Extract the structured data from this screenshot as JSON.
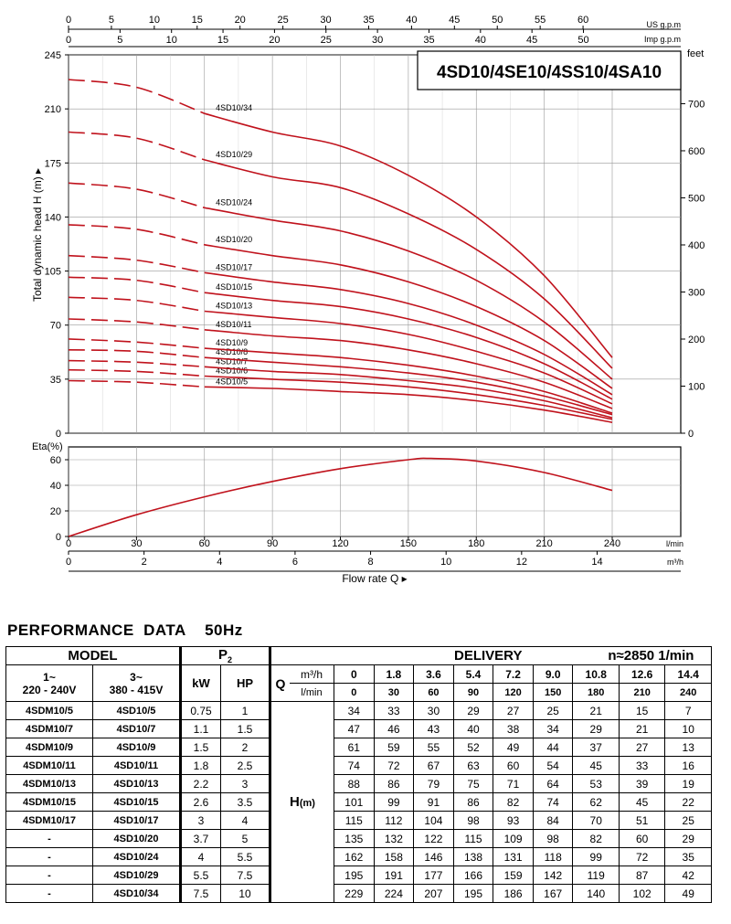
{
  "chart_title": "4SD10/4SE10/4SS10/4SA10",
  "colors": {
    "curve": "#c0121c",
    "axis": "#000000"
  },
  "axes": {
    "us_gpm_label": "US g.p.m",
    "imp_gpm_label": "Imp g.p.m",
    "feet_label": "feet",
    "head_label": "Total dynamic head H (m)",
    "eta_label": "Eta(%)",
    "lmin_unit": "l/min",
    "m3h_unit": "m³/h",
    "flow_label": "Flow rate  Q"
  },
  "chart_data": [
    {
      "type": "line",
      "title": "4SD10/4SE10/4SS10/4SA10",
      "xlabel": "Flow rate Q (l/min)",
      "ylabel": "Total dynamic head H (m)",
      "xlim": [
        0,
        240
      ],
      "ylim": [
        0,
        245
      ],
      "x_ticks_lmin": [
        0,
        30,
        60,
        90,
        120,
        150,
        180,
        210,
        240
      ],
      "x_ticks_m3h": [
        0,
        2,
        4,
        6,
        8,
        10,
        12,
        14
      ],
      "y_ticks": [
        0,
        35,
        70,
        105,
        140,
        175,
        210,
        245
      ],
      "feet_ticks": [
        0,
        100,
        200,
        300,
        400,
        500,
        600,
        700
      ],
      "us_gpm_ticks": [
        0,
        5,
        10,
        15,
        20,
        25,
        30,
        35,
        40,
        45,
        50,
        55,
        60
      ],
      "imp_gpm_ticks": [
        0,
        5,
        10,
        15,
        20,
        25,
        30,
        35,
        40,
        45,
        50
      ],
      "x": [
        0,
        30,
        60,
        90,
        120,
        150,
        180,
        210,
        240
      ],
      "series": [
        {
          "name": "4SD10/5",
          "values": [
            34,
            33,
            30,
            29,
            27,
            25,
            21,
            15,
            7
          ]
        },
        {
          "name": "4SD10/6",
          "values": [
            41,
            40,
            37,
            35,
            33,
            30,
            25,
            18,
            9
          ]
        },
        {
          "name": "4SD10/7",
          "values": [
            47,
            46,
            43,
            40,
            38,
            34,
            29,
            21,
            10
          ]
        },
        {
          "name": "4SD10/8",
          "values": [
            54,
            53,
            49,
            46,
            43,
            39,
            33,
            24,
            12
          ]
        },
        {
          "name": "4SD10/9",
          "values": [
            61,
            59,
            55,
            52,
            49,
            44,
            37,
            27,
            13
          ]
        },
        {
          "name": "4SD10/11",
          "values": [
            74,
            72,
            67,
            63,
            60,
            54,
            45,
            33,
            16
          ]
        },
        {
          "name": "4SD10/13",
          "values": [
            88,
            86,
            79,
            75,
            71,
            64,
            53,
            39,
            19
          ]
        },
        {
          "name": "4SD10/15",
          "values": [
            101,
            99,
            91,
            86,
            82,
            74,
            62,
            45,
            22
          ]
        },
        {
          "name": "4SD10/17",
          "values": [
            115,
            112,
            104,
            98,
            93,
            84,
            70,
            51,
            25
          ]
        },
        {
          "name": "4SD10/20",
          "values": [
            135,
            132,
            122,
            115,
            109,
            98,
            82,
            60,
            29
          ]
        },
        {
          "name": "4SD10/24",
          "values": [
            162,
            158,
            146,
            138,
            131,
            118,
            99,
            72,
            35
          ]
        },
        {
          "name": "4SD10/29",
          "values": [
            195,
            191,
            177,
            166,
            159,
            142,
            119,
            87,
            42
          ]
        },
        {
          "name": "4SD10/34",
          "values": [
            229,
            224,
            207,
            195,
            186,
            167,
            140,
            102,
            49
          ]
        }
      ]
    },
    {
      "type": "line",
      "ylabel": "Eta(%)",
      "xlim": [
        0,
        240
      ],
      "ylim": [
        0,
        70
      ],
      "y_ticks": [
        0,
        20,
        40,
        60
      ],
      "x": [
        0,
        30,
        60,
        90,
        120,
        150,
        160,
        180,
        210,
        240
      ],
      "series": [
        {
          "name": "",
          "values": [
            0,
            17,
            31,
            43,
            53,
            60,
            61,
            59,
            50,
            36
          ]
        }
      ]
    }
  ],
  "table": {
    "title": "PERFORMANCE  DATA    50Hz",
    "model_header": "MODEL",
    "p2_header": "P",
    "p2_sub": "2",
    "delivery_header": "DELIVERY",
    "speed": "n≈2850 1/min",
    "phase1": "1~",
    "volt1": "220 - 240V",
    "phase3": "3~",
    "volt3": "380 - 415V",
    "kw": "kW",
    "hp": "HP",
    "q": "Q",
    "m3h": "m³/h",
    "lmin": "l/min",
    "h_label": "H",
    "h_unit": "(m)",
    "q_m3h": [
      "0",
      "1.8",
      "3.6",
      "5.4",
      "7.2",
      "9.0",
      "10.8",
      "12.6",
      "14.4"
    ],
    "q_lmin": [
      "0",
      "30",
      "60",
      "90",
      "120",
      "150",
      "180",
      "210",
      "240"
    ],
    "rows": [
      {
        "m1": "4SDM10/5",
        "m3": "4SD10/5",
        "kw": "0.75",
        "hp": "1",
        "h": [
          "34",
          "33",
          "30",
          "29",
          "27",
          "25",
          "21",
          "15",
          "7"
        ]
      },
      {
        "m1": "4SDM10/7",
        "m3": "4SD10/7",
        "kw": "1.1",
        "hp": "1.5",
        "h": [
          "47",
          "46",
          "43",
          "40",
          "38",
          "34",
          "29",
          "21",
          "10"
        ]
      },
      {
        "m1": "4SDM10/9",
        "m3": "4SD10/9",
        "kw": "1.5",
        "hp": "2",
        "h": [
          "61",
          "59",
          "55",
          "52",
          "49",
          "44",
          "37",
          "27",
          "13"
        ]
      },
      {
        "m1": "4SDM10/11",
        "m3": "4SD10/11",
        "kw": "1.8",
        "hp": "2.5",
        "h": [
          "74",
          "72",
          "67",
          "63",
          "60",
          "54",
          "45",
          "33",
          "16"
        ]
      },
      {
        "m1": "4SDM10/13",
        "m3": "4SD10/13",
        "kw": "2.2",
        "hp": "3",
        "h": [
          "88",
          "86",
          "79",
          "75",
          "71",
          "64",
          "53",
          "39",
          "19"
        ]
      },
      {
        "m1": "4SDM10/15",
        "m3": "4SD10/15",
        "kw": "2.6",
        "hp": "3.5",
        "h": [
          "101",
          "99",
          "91",
          "86",
          "82",
          "74",
          "62",
          "45",
          "22"
        ]
      },
      {
        "m1": "4SDM10/17",
        "m3": "4SD10/17",
        "kw": "3",
        "hp": "4",
        "h": [
          "115",
          "112",
          "104",
          "98",
          "93",
          "84",
          "70",
          "51",
          "25"
        ]
      },
      {
        "m1": "-",
        "m3": "4SD10/20",
        "kw": "3.7",
        "hp": "5",
        "h": [
          "135",
          "132",
          "122",
          "115",
          "109",
          "98",
          "82",
          "60",
          "29"
        ]
      },
      {
        "m1": "-",
        "m3": "4SD10/24",
        "kw": "4",
        "hp": "5.5",
        "h": [
          "162",
          "158",
          "146",
          "138",
          "131",
          "118",
          "99",
          "72",
          "35"
        ]
      },
      {
        "m1": "-",
        "m3": "4SD10/29",
        "kw": "5.5",
        "hp": "7.5",
        "h": [
          "195",
          "191",
          "177",
          "166",
          "159",
          "142",
          "119",
          "87",
          "42"
        ]
      },
      {
        "m1": "-",
        "m3": "4SD10/34",
        "kw": "7.5",
        "hp": "10",
        "h": [
          "229",
          "224",
          "207",
          "195",
          "186",
          "167",
          "140",
          "102",
          "49"
        ]
      }
    ]
  }
}
